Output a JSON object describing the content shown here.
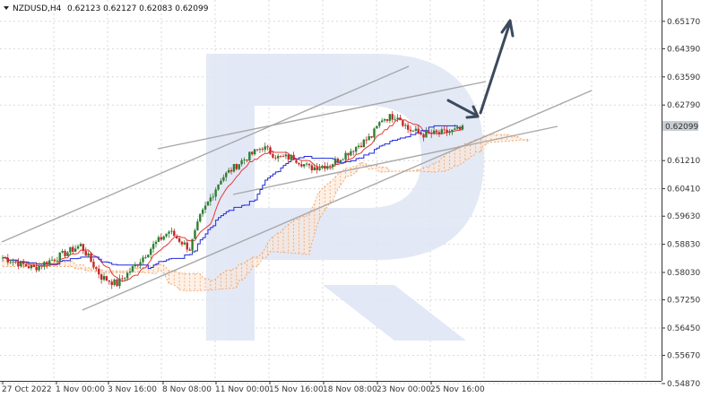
{
  "header": {
    "symbol": "NZDUSD,H4",
    "ohlc": "0.62123 0.62127 0.62083 0.62099"
  },
  "chart_data": {
    "type": "candlestick",
    "title": "",
    "ylim": [
      0.5487,
      0.657
    ],
    "price_ticks": [
      "0.65170",
      "0.64390",
      "0.63590",
      "0.62790",
      "0.62099",
      "0.61210",
      "0.60410",
      "0.59630",
      "0.58830",
      "0.58030",
      "0.57250",
      "0.56450",
      "0.55670",
      "0.54870"
    ],
    "time_ticks": [
      "27 Oct 2022",
      "1 Nov 00:00",
      "3 Nov 16:00",
      "8 Nov 08:00",
      "11 Nov 00:00",
      "15 Nov 16:00",
      "18 Nov 08:00",
      "23 Nov 00:00",
      "25 Nov 16:00"
    ],
    "current_price": "0.62099",
    "grid": true,
    "colors": {
      "up": "#2f7d32",
      "down": "#c62828",
      "tenkan": "#e53935",
      "kijun": "#1e2adb",
      "cloud": "#f2a468",
      "trend": "#a8a8a8",
      "arrow": "#3b4a5c",
      "price_tag": "#c8cdd2",
      "watermark": "#dfe5f5"
    }
  }
}
